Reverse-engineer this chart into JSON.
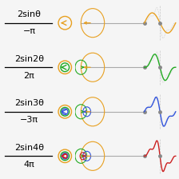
{
  "rows": [
    {
      "formula_top": "2sinθ",
      "formula_bot": "−π",
      "color": "#e8a020",
      "n_terms": 1
    },
    {
      "formula_top": "2sin2θ",
      "formula_bot": "2π",
      "color": "#22aa22",
      "n_terms": 2
    },
    {
      "formula_top": "2sin3θ",
      "formula_bot": "−3π",
      "color": "#3355dd",
      "n_terms": 3
    },
    {
      "formula_top": "2sin4θ",
      "formula_bot": "4π",
      "color": "#cc2222",
      "n_terms": 4
    }
  ],
  "ring_colors": [
    "#e8a020",
    "#22aa22",
    "#3355dd",
    "#cc2222"
  ],
  "bg_color": "#f5f5f5",
  "snapshot_theta": 3.14159265
}
